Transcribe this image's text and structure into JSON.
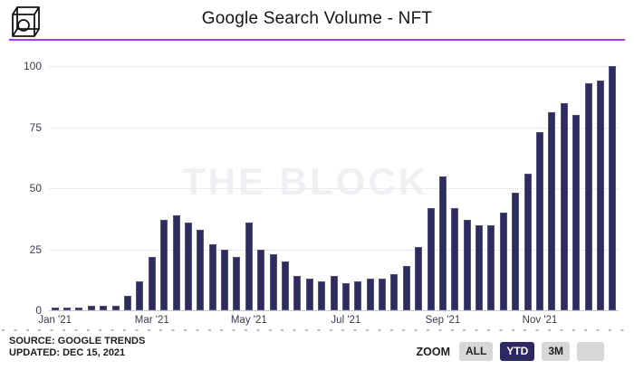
{
  "header": {
    "title": "Google Search Volume - NFT"
  },
  "watermark": "THE BLOCK",
  "chart_data": {
    "type": "bar",
    "title": "Google Search Volume - NFT",
    "ylim": [
      0,
      100
    ],
    "y_ticks": [
      100,
      75,
      50,
      25,
      0
    ],
    "grid": "horizontal",
    "legend": false,
    "bar_color": "#2e2b5f",
    "x_tick_labels": [
      {
        "index": 0,
        "label": "Jan '21"
      },
      {
        "index": 8,
        "label": "Mar '21"
      },
      {
        "index": 16,
        "label": "May '21"
      },
      {
        "index": 24,
        "label": "Jul '21"
      },
      {
        "index": 32,
        "label": "Sep '21"
      },
      {
        "index": 40,
        "label": "Nov '21"
      }
    ],
    "values": [
      1,
      1,
      1,
      2,
      2,
      2,
      6,
      12,
      22,
      37,
      39,
      36,
      33,
      27,
      25,
      22,
      36,
      25,
      23,
      20,
      14,
      13,
      12,
      14,
      11,
      12,
      13,
      13,
      15,
      18,
      26,
      42,
      55,
      42,
      37,
      35,
      35,
      40,
      48,
      56,
      73,
      81,
      85,
      80,
      93,
      94,
      100
    ]
  },
  "footer": {
    "source_line1": "SOURCE: GOOGLE TRENDS",
    "source_line2": "UPDATED: DEC 15, 2021",
    "zoom_label": "ZOOM",
    "zoom_buttons": [
      {
        "label": "ALL",
        "active": false
      },
      {
        "label": "YTD",
        "active": true
      },
      {
        "label": "3M",
        "active": false
      },
      {
        "label": "",
        "active": false
      }
    ]
  },
  "colors": {
    "divider": "#a63bf2",
    "bar": "#2e2b5f",
    "active_button_bg": "#2e2963",
    "button_bg": "#d7d7d7",
    "watermark": "#f0eff3"
  }
}
